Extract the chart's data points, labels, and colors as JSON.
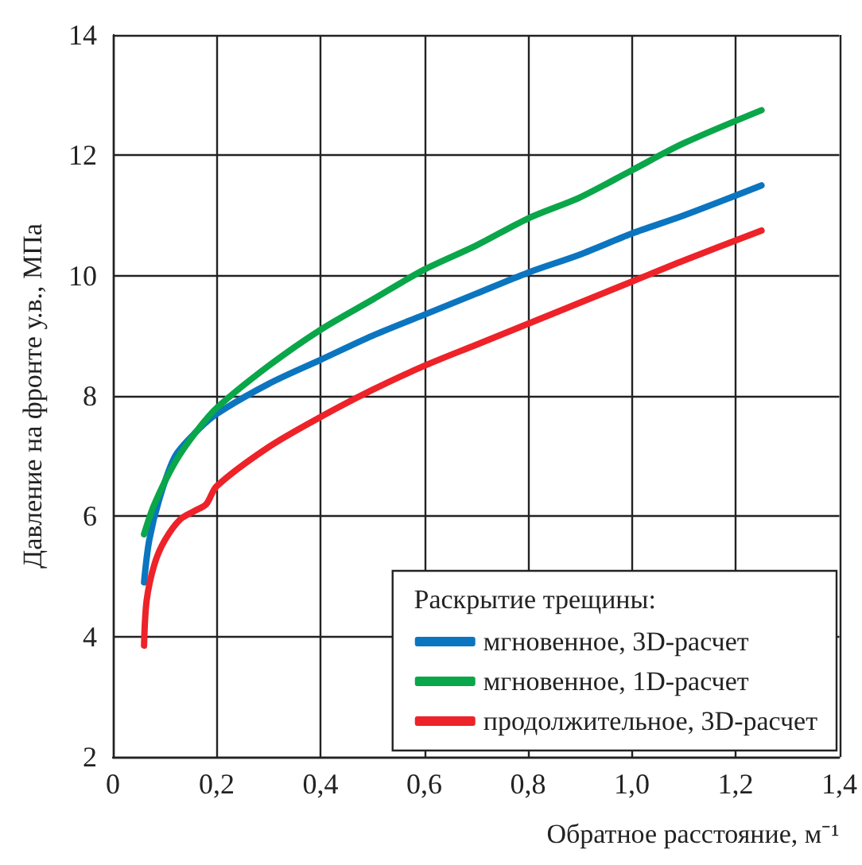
{
  "chart_data": {
    "type": "line",
    "xlabel": "Обратное расстояние, м⁻¹",
    "ylabel": "Давление на фронте у.в., МПа",
    "legend_title": "Раскрытие трещины:",
    "xlim": [
      0,
      1.4
    ],
    "xticks": [
      0,
      {
        "value": 0.2,
        "label": "0,2"
      },
      {
        "value": 0.4,
        "label": "0,4"
      },
      {
        "value": 0.6,
        "label": "0,6"
      },
      {
        "value": 0.8,
        "label": "0,8"
      },
      {
        "value": 1.0,
        "label": "1,0"
      },
      {
        "value": 1.2,
        "label": "1,2"
      },
      {
        "value": 1.4,
        "label": "1,4"
      }
    ],
    "ylim": [
      2,
      14
    ],
    "yticks": [
      2,
      4,
      6,
      8,
      10,
      12,
      14
    ],
    "grid": true,
    "legend": "bottom right",
    "marker": "none",
    "line_style": "solid",
    "series": [
      {
        "name": "мгновенное, 3D-расчет",
        "color": "#0b75c0",
        "x": [
          0.06,
          0.07,
          0.09,
          0.12,
          0.16,
          0.2,
          0.3,
          0.4,
          0.5,
          0.6,
          0.7,
          0.8,
          0.9,
          1.0,
          1.1,
          1.25
        ],
        "values": [
          4.9,
          5.6,
          6.3,
          7.0,
          7.4,
          7.7,
          8.2,
          8.6,
          9.0,
          9.35,
          9.7,
          10.05,
          10.35,
          10.7,
          11.0,
          11.5
        ]
      },
      {
        "name": "мгновенное, 1D-расчет",
        "color": "#0aa64a",
        "x": [
          0.06,
          0.08,
          0.12,
          0.16,
          0.2,
          0.3,
          0.4,
          0.5,
          0.6,
          0.7,
          0.8,
          0.9,
          1.0,
          1.1,
          1.25
        ],
        "values": [
          5.7,
          6.2,
          6.9,
          7.4,
          7.8,
          8.5,
          9.1,
          9.6,
          10.1,
          10.5,
          10.95,
          11.3,
          11.75,
          12.2,
          12.75
        ]
      },
      {
        "name": "продолжительное, 3D-расчет",
        "color": "#ee2229",
        "x": [
          0.06,
          0.065,
          0.08,
          0.1,
          0.13,
          0.16,
          0.18,
          0.2,
          0.3,
          0.4,
          0.5,
          0.6,
          0.7,
          0.8,
          0.9,
          1.0,
          1.1,
          1.25
        ],
        "values": [
          3.85,
          4.6,
          5.2,
          5.6,
          5.95,
          6.1,
          6.2,
          6.5,
          7.15,
          7.65,
          8.1,
          8.5,
          8.85,
          9.2,
          9.55,
          9.9,
          10.25,
          10.75
        ]
      }
    ]
  }
}
